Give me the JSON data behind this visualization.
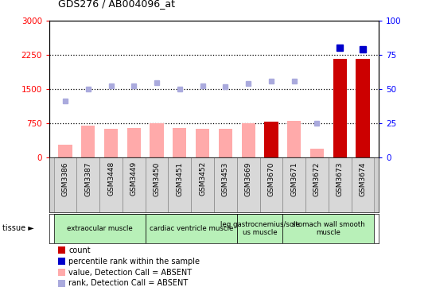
{
  "title": "GDS276 / AB004096_at",
  "categories": [
    "GSM3386",
    "GSM3387",
    "GSM3448",
    "GSM3449",
    "GSM3450",
    "GSM3451",
    "GSM3452",
    "GSM3453",
    "GSM3669",
    "GSM3670",
    "GSM3671",
    "GSM3672",
    "GSM3673",
    "GSM3674"
  ],
  "bar_values": [
    270,
    700,
    620,
    640,
    750,
    640,
    620,
    620,
    750,
    770,
    800,
    190,
    2150,
    2150
  ],
  "bar_colors": [
    "#ffaaaa",
    "#ffaaaa",
    "#ffaaaa",
    "#ffaaaa",
    "#ffaaaa",
    "#ffaaaa",
    "#ffaaaa",
    "#ffaaaa",
    "#ffaaaa",
    "#cc0000",
    "#ffaaaa",
    "#ffaaaa",
    "#cc0000",
    "#cc0000"
  ],
  "scatter_absent_value": [
    1230,
    1500,
    1570,
    1570,
    1640,
    1500,
    1560,
    1540,
    1610,
    null,
    null,
    null,
    null,
    null
  ],
  "scatter_absent_rank_left": [
    null,
    null,
    null,
    null,
    null,
    null,
    null,
    null,
    null,
    1660,
    1660,
    750,
    null,
    null
  ],
  "scatter_present_rank_pct": [
    null,
    null,
    null,
    null,
    null,
    null,
    null,
    null,
    null,
    null,
    null,
    null,
    80,
    79
  ],
  "ylim_left": [
    0,
    3000
  ],
  "ylim_right": [
    0,
    100
  ],
  "yticks_left": [
    0,
    750,
    1500,
    2250,
    3000
  ],
  "yticks_right": [
    0,
    25,
    50,
    75,
    100
  ],
  "hlines": [
    750,
    1500,
    2250
  ],
  "tissue_groups": [
    {
      "label": "extraocular muscle",
      "start": 0,
      "end": 3,
      "color": "#b8f0b8"
    },
    {
      "label": "cardiac ventricle muscle",
      "start": 4,
      "end": 7,
      "color": "#b8f0b8"
    },
    {
      "label": "leg gastrocnemius/sole\nus muscle",
      "start": 8,
      "end": 9,
      "color": "#b8f0b8"
    },
    {
      "label": "stomach wall smooth\nmuscle",
      "start": 10,
      "end": 13,
      "color": "#b8f0b8"
    }
  ],
  "legend_items": [
    {
      "label": "count",
      "color": "#cc0000"
    },
    {
      "label": "percentile rank within the sample",
      "color": "#0000cc"
    },
    {
      "label": "value, Detection Call = ABSENT",
      "color": "#ffaaaa"
    },
    {
      "label": "rank, Detection Call = ABSENT",
      "color": "#aaaadd"
    }
  ]
}
